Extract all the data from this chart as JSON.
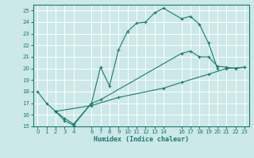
{
  "xlabel": "Humidex (Indice chaleur)",
  "bg_color": "#cce8e8",
  "grid_color": "#ffffff",
  "line_color": "#1a7a6e",
  "ylim": [
    15,
    25.5
  ],
  "xlim": [
    -0.5,
    23.5
  ],
  "yticks": [
    15,
    16,
    17,
    18,
    19,
    20,
    21,
    22,
    23,
    24,
    25
  ],
  "xticks": [
    0,
    1,
    2,
    3,
    4,
    6,
    7,
    8,
    9,
    10,
    11,
    12,
    13,
    14,
    16,
    17,
    18,
    19,
    20,
    21,
    22,
    23
  ],
  "xtick_labels": [
    "0",
    "1",
    "2",
    "3",
    "4",
    "6",
    "7",
    "8",
    "9",
    "10",
    "11",
    "12",
    "13",
    "14",
    "16",
    "17",
    "18",
    "19",
    "20",
    "21",
    "22",
    "23"
  ],
  "line1_x": [
    0,
    1,
    2,
    3,
    4,
    6,
    7,
    8,
    9,
    10,
    11,
    12,
    13,
    14,
    16,
    17,
    18,
    19,
    20
  ],
  "line1_y": [
    18.0,
    17.0,
    16.3,
    15.5,
    15.1,
    17.0,
    20.1,
    18.5,
    21.6,
    23.2,
    23.9,
    24.0,
    24.8,
    25.2,
    24.3,
    24.5,
    23.8,
    22.2,
    20.0
  ],
  "line2_x": [
    2,
    3,
    4,
    6,
    7,
    16,
    17,
    18,
    19,
    20,
    21,
    22,
    23
  ],
  "line2_y": [
    16.3,
    15.7,
    15.2,
    17.0,
    17.3,
    21.3,
    21.5,
    21.0,
    21.0,
    20.2,
    20.1,
    20.0,
    20.1
  ],
  "line3_x": [
    2,
    6,
    9,
    14,
    16,
    19,
    21,
    23
  ],
  "line3_y": [
    16.3,
    16.8,
    17.5,
    18.3,
    18.8,
    19.5,
    20.0,
    20.1
  ]
}
